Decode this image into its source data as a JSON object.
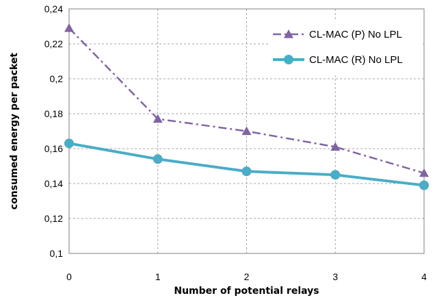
{
  "chart_data": {
    "type": "line",
    "title": "",
    "xlabel": "Number of potential relays",
    "ylabel": "consumed energy per packet",
    "x": [
      0,
      1,
      2,
      3,
      4
    ],
    "x_tick_labels": [
      "0",
      "1",
      "2",
      "3",
      "4"
    ],
    "xlim": [
      0,
      4
    ],
    "ylim": [
      0.1,
      0.24
    ],
    "y_ticks": [
      0.1,
      0.12,
      0.14,
      0.16,
      0.18,
      0.2,
      0.22,
      0.24
    ],
    "y_tick_labels": [
      "0,1",
      "0,12",
      "0,14",
      "0,16",
      "0,18",
      "0,2",
      "0,22",
      "0,24"
    ],
    "grid": true,
    "legend_position": "top-right",
    "series": [
      {
        "name": "CL-MAC (P) No LPL",
        "values": [
          0.229,
          0.177,
          0.17,
          0.161,
          0.146
        ],
        "color": "#8064a2",
        "marker": "triangle",
        "line_style": "dash-dot"
      },
      {
        "name": "CL-MAC (R) No LPL",
        "values": [
          0.163,
          0.154,
          0.147,
          0.145,
          0.139
        ],
        "color": "#4bacc6",
        "marker": "circle",
        "line_style": "solid"
      }
    ]
  }
}
